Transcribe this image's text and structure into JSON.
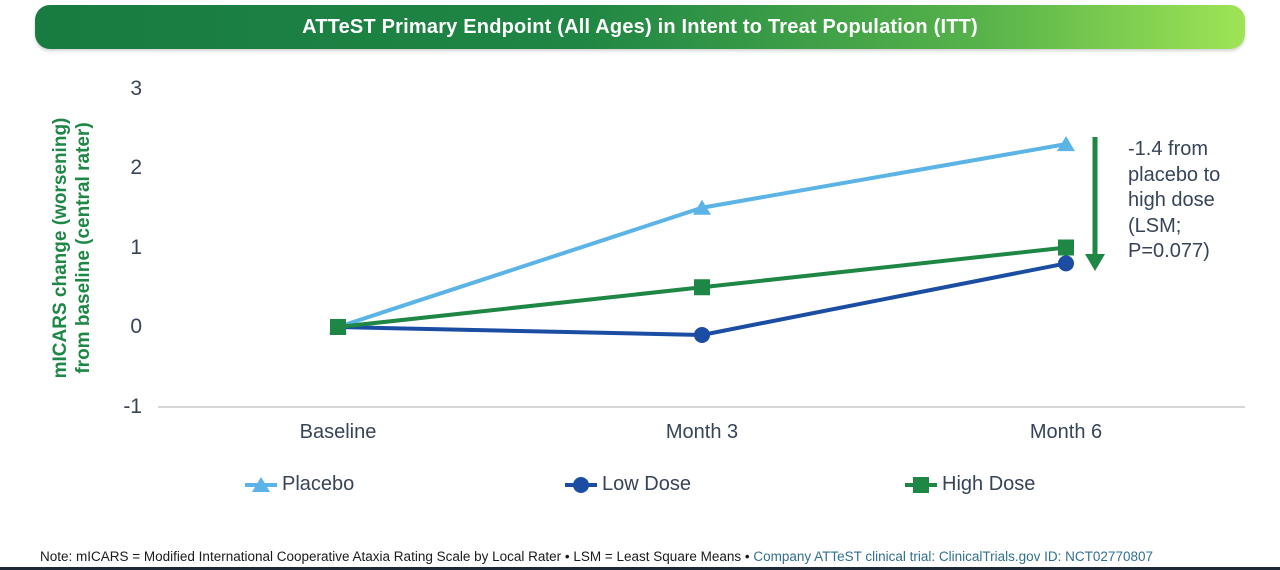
{
  "header": {
    "title": "ATTeST Primary Endpoint (All Ages) in Intent to Treat Population (ITT)",
    "bar_gradient": [
      "#187B40",
      "#9FE455"
    ]
  },
  "chart_data": {
    "type": "line",
    "title": "ATTeST Primary Endpoint (All Ages) in Intent to Treat Population (ITT)",
    "categories": [
      "Baseline",
      "Month 3",
      "Month 6"
    ],
    "ylabel_lines": [
      "mICARS change (worsening)",
      "from baseline (central rater)"
    ],
    "ylabel_color": "#1E8745",
    "y_ticks": [
      "3",
      "2",
      "1",
      "0",
      "-1"
    ],
    "ylim": [
      -1,
      3
    ],
    "grid": "none",
    "legend_position": "bottom",
    "series": [
      {
        "name": "Placebo",
        "marker": "triangle",
        "color": "#5BB4E5",
        "values": [
          0,
          1.5,
          2.3
        ]
      },
      {
        "name": "Low Dose",
        "marker": "circle",
        "color": "#1B4DA2",
        "values": [
          0,
          -0.1,
          0.8
        ]
      },
      {
        "name": "High Dose",
        "marker": "square",
        "color": "#1E8745",
        "values": [
          0,
          0.5,
          1.0
        ]
      }
    ],
    "annotation": {
      "lines": [
        "-1.4 from",
        "placebo to",
        "high dose",
        "(LSM;",
        "P=0.077)"
      ],
      "arrow_color": "#1E8745"
    }
  },
  "footnote": {
    "note": "Note: mICARS = Modified International Cooperative Ataxia Rating Scale by Local Rater • LSM = Least Square Means • ",
    "link": "Company ATTeST clinical trial: ClinicalTrials.gov ID: NCT02770807",
    "link_color": "#31708F"
  }
}
